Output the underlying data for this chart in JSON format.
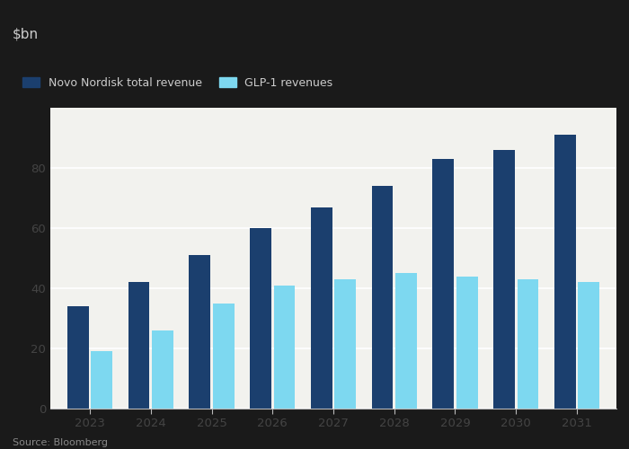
{
  "years": [
    2023,
    2024,
    2025,
    2026,
    2027,
    2028,
    2029,
    2030,
    2031
  ],
  "novo_nordisk_total": [
    34,
    42,
    51,
    60,
    67,
    74,
    83,
    86,
    91
  ],
  "glp1_revenues": [
    19,
    26,
    35,
    41,
    43,
    45,
    44,
    43,
    42
  ],
  "novo_color": "#1b3f6e",
  "glp1_color": "#7dd8f0",
  "ylabel": "$bn",
  "legend_novo": "Novo Nordisk total revenue",
  "legend_glp1": "GLP-1 revenues",
  "source": "Source: Bloomberg",
  "ylim": [
    0,
    100
  ],
  "yticks": [
    0,
    20,
    40,
    60,
    80
  ],
  "chart_bg": "#f2f2ee",
  "header_bg": "#1a1a1a",
  "header_text_color": "#cccccc",
  "bar_width": 0.35
}
